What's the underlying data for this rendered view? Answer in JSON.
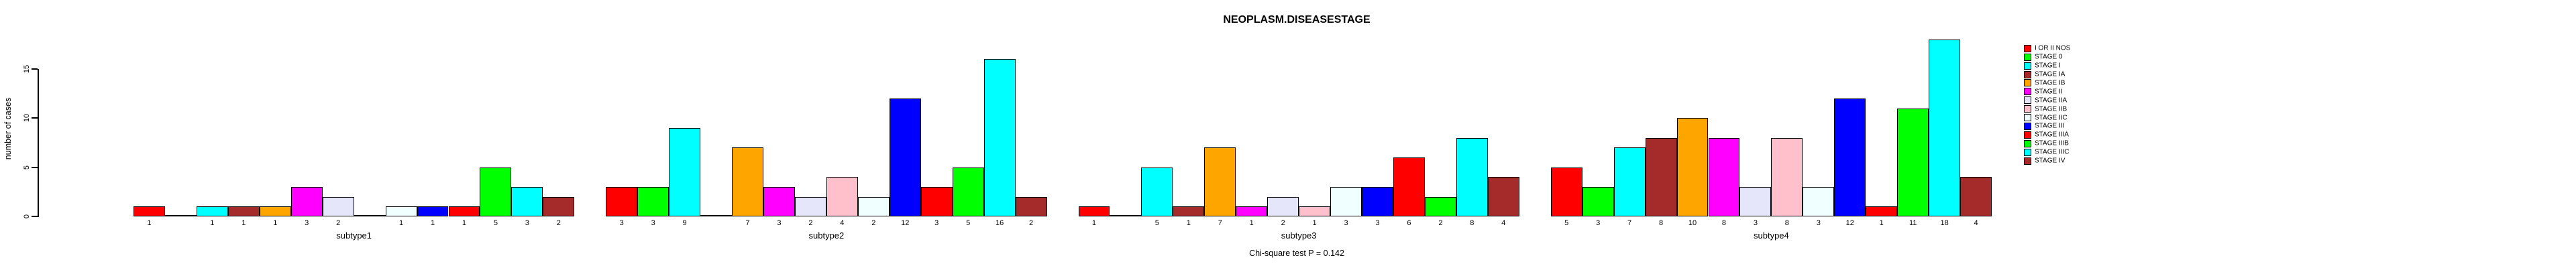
{
  "chart_data": {
    "type": "bar",
    "title": "NEOPLASM.DISEASESTAGE",
    "ylabel": "number of cases",
    "xlabel": "",
    "annotation": "Chi-square test P = 0.142",
    "ylim": [
      0,
      15
    ],
    "yticks": [
      0,
      5,
      10,
      15
    ],
    "grid": false,
    "legend_position": "right",
    "bar_value_labels_shown": true,
    "categories": [
      "subtype1",
      "subtype2",
      "subtype3",
      "subtype4"
    ],
    "series": [
      {
        "name": "I OR II NOS",
        "color": "#FF0000",
        "values": [
          1,
          3,
          1,
          5
        ]
      },
      {
        "name": "STAGE 0",
        "color": "#00FF00",
        "values": [
          0,
          3,
          0,
          3
        ]
      },
      {
        "name": "STAGE I",
        "color": "#00FFFF",
        "values": [
          1,
          9,
          5,
          7
        ]
      },
      {
        "name": "STAGE IA",
        "color": "#A52A2A",
        "values": [
          1,
          0,
          1,
          8
        ]
      },
      {
        "name": "STAGE IB",
        "color": "#FFA500",
        "values": [
          1,
          7,
          7,
          10
        ]
      },
      {
        "name": "STAGE II",
        "color": "#FF00FF",
        "values": [
          3,
          3,
          1,
          8
        ]
      },
      {
        "name": "STAGE IIA",
        "color": "#E6E6FA",
        "values": [
          2,
          2,
          2,
          3
        ]
      },
      {
        "name": "STAGE IIB",
        "color": "#FFC0CB",
        "values": [
          0,
          4,
          1,
          8
        ]
      },
      {
        "name": "STAGE IIC",
        "color": "#F0FFFF",
        "values": [
          1,
          2,
          3,
          3
        ]
      },
      {
        "name": "STAGE III",
        "color": "#0000FF",
        "values": [
          1,
          12,
          3,
          12
        ]
      },
      {
        "name": "STAGE IIIA",
        "color": "#FF0000",
        "values": [
          1,
          3,
          6,
          1
        ]
      },
      {
        "name": "STAGE IIIB",
        "color": "#00FF00",
        "values": [
          5,
          5,
          2,
          11
        ]
      },
      {
        "name": "STAGE IIIC",
        "color": "#00FFFF",
        "values": [
          3,
          16,
          8,
          18
        ]
      },
      {
        "name": "STAGE IV",
        "color": "#A52A2A",
        "values": [
          2,
          2,
          4,
          4
        ]
      }
    ]
  }
}
